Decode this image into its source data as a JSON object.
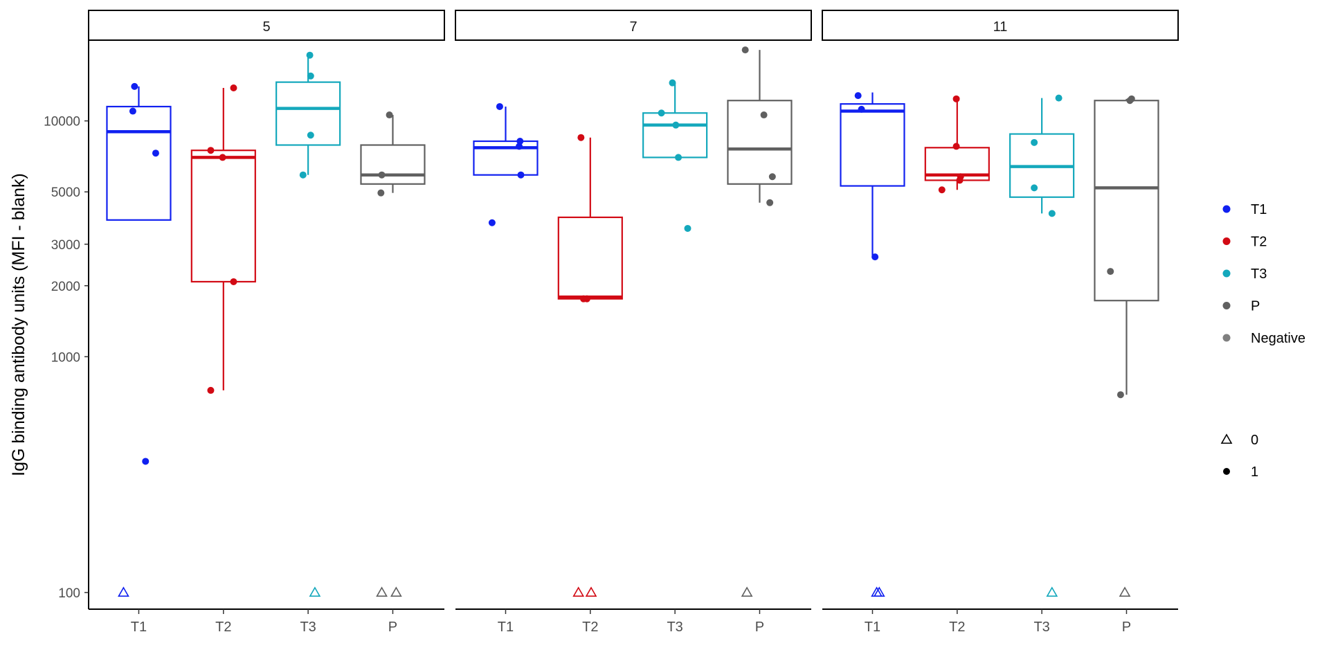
{
  "chart_data": {
    "type": "boxplot",
    "ylabel": "IgG binding antibody units (MFI - blank)",
    "xlabel": "",
    "yscale": "log10",
    "ylim": [
      85,
      22000
    ],
    "yticks": [
      100,
      1000,
      2000,
      3000,
      5000,
      10000
    ],
    "ytick_labels": [
      "100",
      "1000",
      "2000",
      "3000",
      "5000",
      "10000"
    ],
    "categories": [
      "T1",
      "T2",
      "T3",
      "P"
    ],
    "colors": {
      "T1": "#1020f0",
      "T2": "#d20a14",
      "T3": "#14a8bc",
      "P": "#606060",
      "Negative": "#7f7f7f"
    },
    "legend_groups": [
      {
        "entries": [
          {
            "label": "T1",
            "color": "#1020f0",
            "shape": "circle"
          },
          {
            "label": "T2",
            "color": "#d20a14",
            "shape": "circle"
          },
          {
            "label": "T3",
            "color": "#14a8bc",
            "shape": "circle"
          },
          {
            "label": "P",
            "color": "#606060",
            "shape": "circle"
          },
          {
            "label": "Negative",
            "color": "#7f7f7f",
            "shape": "circle"
          }
        ]
      },
      {
        "entries": [
          {
            "label": "0",
            "color": "#000000",
            "shape": "triangle"
          },
          {
            "label": "1",
            "color": "#000000",
            "shape": "circle"
          }
        ]
      }
    ],
    "panels": [
      {
        "label": "5",
        "groups": [
          {
            "name": "T1",
            "box": {
              "lower": 3800,
              "q1": 3800,
              "median": 9000,
              "q3": 11500,
              "upper": 14000
            },
            "points": [
              {
                "y": 14000,
                "j": -0.05
              },
              {
                "y": 11000,
                "j": -0.07
              },
              {
                "y": 7300,
                "j": 0.2
              },
              {
                "y": 360,
                "j": 0.08
              }
            ],
            "negatives": [
              {
                "y": 100,
                "j": -0.18
              }
            ]
          },
          {
            "name": "T2",
            "box": {
              "lower": 720,
              "q1": 2080,
              "median": 7000,
              "q3": 7500,
              "upper": 13800
            },
            "points": [
              {
                "y": 13800,
                "j": 0.12
              },
              {
                "y": 7500,
                "j": -0.15
              },
              {
                "y": 7000,
                "j": -0.01
              },
              {
                "y": 2080,
                "j": 0.12
              },
              {
                "y": 720,
                "j": -0.15
              }
            ],
            "negatives": []
          },
          {
            "name": "T3",
            "box": {
              "lower": 5900,
              "q1": 7900,
              "median": 11300,
              "q3": 14600,
              "upper": 19000
            },
            "points": [
              {
                "y": 19000,
                "j": 0.02
              },
              {
                "y": 15500,
                "j": 0.03
              },
              {
                "y": 8700,
                "j": 0.03
              },
              {
                "y": 5900,
                "j": -0.06
              }
            ],
            "negatives": [
              {
                "y": 100,
                "j": 0.08
              }
            ]
          },
          {
            "name": "P",
            "box": {
              "lower": 4950,
              "q1": 5400,
              "median": 5900,
              "q3": 7900,
              "upper": 10600
            },
            "points": [
              {
                "y": 10600,
                "j": -0.04
              },
              {
                "y": 5900,
                "j": -0.13
              },
              {
                "y": 4950,
                "j": -0.14
              }
            ],
            "negatives": [
              {
                "y": 100,
                "j": -0.13
              },
              {
                "y": 100,
                "j": 0.04
              }
            ]
          }
        ]
      },
      {
        "label": "7",
        "groups": [
          {
            "name": "T1",
            "box": {
              "lower": 5900,
              "q1": 5900,
              "median": 7700,
              "q3": 8200,
              "upper": 11500
            },
            "points": [
              {
                "y": 11500,
                "j": -0.07
              },
              {
                "y": 8200,
                "j": 0.17
              },
              {
                "y": 7800,
                "j": 0.16
              },
              {
                "y": 5900,
                "j": 0.18
              },
              {
                "y": 3700,
                "j": -0.16
              }
            ],
            "negatives": []
          },
          {
            "name": "T2",
            "box": {
              "lower": 1760,
              "q1": 1760,
              "median": 1790,
              "q3": 3900,
              "upper": 8500
            },
            "points": [
              {
                "y": 8500,
                "j": -0.11
              },
              {
                "y": 1760,
                "j": -0.08
              },
              {
                "y": 1760,
                "j": -0.04
              }
            ],
            "negatives": [
              {
                "y": 100,
                "j": -0.14
              },
              {
                "y": 100,
                "j": 0.01
              }
            ]
          },
          {
            "name": "T3",
            "box": {
              "lower": 7000,
              "q1": 7000,
              "median": 9600,
              "q3": 10800,
              "upper": 14500
            },
            "points": [
              {
                "y": 14500,
                "j": -0.03
              },
              {
                "y": 10800,
                "j": -0.16
              },
              {
                "y": 9600,
                "j": 0.01
              },
              {
                "y": 7000,
                "j": 0.04
              },
              {
                "y": 3500,
                "j": 0.15
              }
            ],
            "negatives": []
          },
          {
            "name": "P",
            "box": {
              "lower": 4500,
              "q1": 5400,
              "median": 7600,
              "q3": 12200,
              "upper": 20000
            },
            "points": [
              {
                "y": 20000,
                "j": -0.17
              },
              {
                "y": 10600,
                "j": 0.05
              },
              {
                "y": 5800,
                "j": 0.15
              },
              {
                "y": 4500,
                "j": 0.12
              }
            ],
            "negatives": [
              {
                "y": 100,
                "j": -0.15
              }
            ]
          }
        ]
      },
      {
        "label": "11",
        "groups": [
          {
            "name": "T1",
            "box": {
              "lower": 2650,
              "q1": 5300,
              "median": 11000,
              "q3": 11800,
              "upper": 13200
            },
            "points": [
              {
                "y": 12800,
                "j": -0.17
              },
              {
                "y": 11200,
                "j": -0.13
              },
              {
                "y": 2650,
                "j": 0.03
              }
            ],
            "negatives": [
              {
                "y": 100,
                "j": 0.05
              },
              {
                "y": 100,
                "j": 0.08
              }
            ]
          },
          {
            "name": "T2",
            "box": {
              "lower": 5100,
              "q1": 5600,
              "median": 5900,
              "q3": 7700,
              "upper": 12400
            },
            "points": [
              {
                "y": 12400,
                "j": -0.01
              },
              {
                "y": 7800,
                "j": -0.01
              },
              {
                "y": 5800,
                "j": 0.04
              },
              {
                "y": 5600,
                "j": 0.03
              },
              {
                "y": 5100,
                "j": -0.18
              }
            ],
            "negatives": []
          },
          {
            "name": "T3",
            "box": {
              "lower": 4050,
              "q1": 4750,
              "median": 6400,
              "q3": 8800,
              "upper": 12500
            },
            "points": [
              {
                "y": 12500,
                "j": 0.2
              },
              {
                "y": 8100,
                "j": -0.09
              },
              {
                "y": 5200,
                "j": -0.09
              },
              {
                "y": 4050,
                "j": 0.12
              }
            ],
            "negatives": [
              {
                "y": 100,
                "j": 0.12
              }
            ]
          },
          {
            "name": "P",
            "box": {
              "lower": 690,
              "q1": 1730,
              "median": 5200,
              "q3": 12200,
              "upper": 12400
            },
            "points": [
              {
                "y": 12200,
                "j": 0.04
              },
              {
                "y": 12400,
                "j": 0.06
              },
              {
                "y": 2300,
                "j": -0.19
              },
              {
                "y": 690,
                "j": -0.07
              }
            ],
            "negatives": [
              {
                "y": 100,
                "j": -0.02
              }
            ]
          }
        ]
      }
    ]
  }
}
